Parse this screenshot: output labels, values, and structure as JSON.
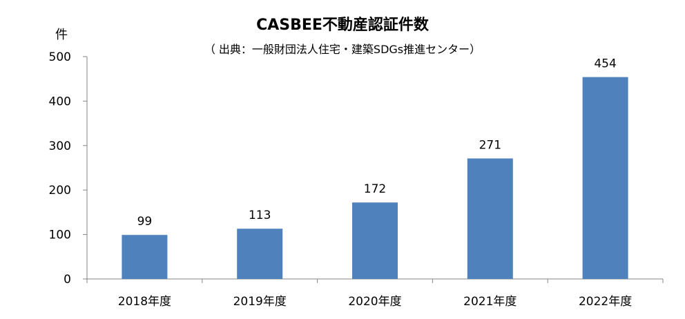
{
  "chart_data": {
    "type": "bar",
    "title": "CASBEE不動産認証件数",
    "subtitle": "（ 出典：一般財団法人住宅・建築SDGs推進センター）",
    "ylabel": "件",
    "xlabel": "",
    "categories": [
      "2018年度",
      "2019年度",
      "2020年度",
      "2021年度",
      "2022年度"
    ],
    "values": [
      99,
      113,
      172,
      271,
      454
    ],
    "data_labels": [
      "99",
      "113",
      "172",
      "271",
      "454"
    ],
    "yticks": [
      0,
      100,
      200,
      300,
      400,
      500
    ],
    "ytick_labels": [
      "0",
      "100",
      "200",
      "300",
      "400",
      "500"
    ],
    "ylim": [
      0,
      500
    ],
    "grid": false,
    "legend": "none",
    "bar_color": "#4F81BD"
  }
}
